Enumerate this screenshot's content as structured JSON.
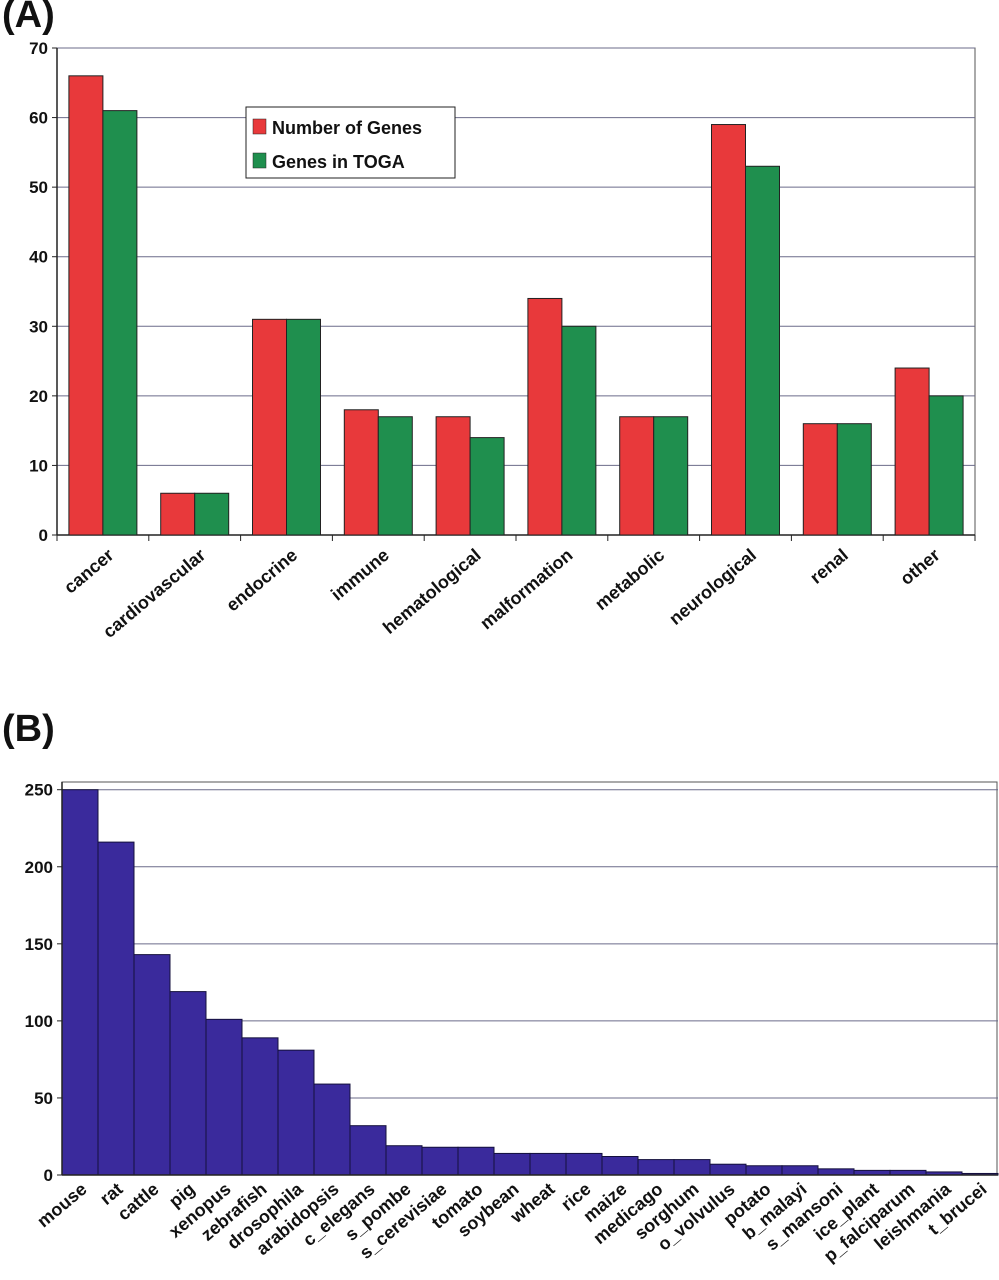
{
  "panels": {
    "a_label": "(A)",
    "b_label": "(B)"
  },
  "chart_data": [
    {
      "type": "bar",
      "categories": [
        "cancer",
        "cardiovascular",
        "endocrine",
        "immune",
        "hematological",
        "malformation",
        "metabolic",
        "neurological",
        "renal",
        "other"
      ],
      "series": [
        {
          "name": "Number of Genes",
          "color": "#e8393b",
          "values": [
            66,
            6,
            31,
            18,
            17,
            34,
            17,
            59,
            16,
            24
          ]
        },
        {
          "name": "Genes in TOGA",
          "color": "#1f8f4e",
          "values": [
            61,
            6,
            31,
            17,
            14,
            30,
            17,
            53,
            16,
            20
          ]
        }
      ],
      "yticks": [
        "0",
        "10",
        "20",
        "30",
        "40",
        "50",
        "60",
        "70"
      ],
      "ylim": [
        0,
        70
      ],
      "grid": true,
      "legend": "top-left"
    },
    {
      "type": "bar",
      "categories": [
        "mouse",
        "rat",
        "cattle",
        "pig",
        "xenopus",
        "zebrafish",
        "drosophila",
        "arabidopsis",
        "c_elegans",
        "s_pombe",
        "s_cerevisiae",
        "tomato",
        "soybean",
        "wheat",
        "rice",
        "maize",
        "medicago",
        "sorghum",
        "o_volvulus",
        "potato",
        "b_malayi",
        "s_mansoni",
        "ice_plant",
        "p_falciparum",
        "leishmania",
        "t_brucei"
      ],
      "series": [
        {
          "color": "#3a2a9c",
          "values": [
            250,
            216,
            143,
            119,
            101,
            89,
            81,
            59,
            32,
            19,
            18,
            18,
            14,
            14,
            14,
            12,
            10,
            10,
            7,
            6,
            6,
            4,
            3,
            3,
            2,
            1
          ]
        }
      ],
      "yticks": [
        "0",
        "50",
        "100",
        "150",
        "200",
        "250"
      ],
      "ylim": [
        0,
        255
      ],
      "grid": true
    }
  ]
}
